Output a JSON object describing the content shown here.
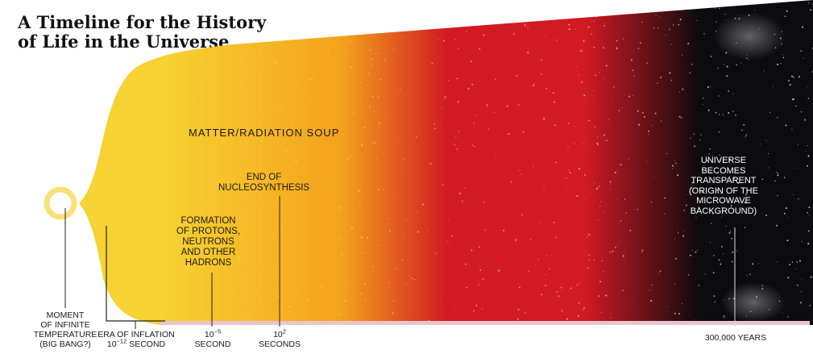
{
  "title": {
    "line1": "A Timeline for the History",
    "line2": "of Life in the Universe"
  },
  "colors": {
    "yellow": "#f6d232",
    "orange": "#f4a21c",
    "red": "#d11a22",
    "black": "#0c0b0e",
    "ring": "#f7e27a"
  },
  "labels": {
    "soup": "MATTER/RADIATION SOUP",
    "nucleo": [
      "END OF",
      "NUCLEOSYNTHESIS"
    ],
    "hadrons": [
      "FORMATION",
      "OF PROTONS,",
      "NEUTRONS",
      "AND OTHER",
      "HADRONS"
    ],
    "transparent": [
      "UNIVERSE",
      "BECOMES",
      "TRANSPARENT",
      "(ORIGIN OF THE",
      "MICROWAVE",
      "BACKGROUND)"
    ],
    "bigbang": [
      "MOMENT",
      "OF INFINITE",
      "TEMPERATURE",
      "(BIG BANG?)"
    ],
    "inflation": {
      "line1": "ERA OF INFLATION",
      "line2_base": "10",
      "line2_exp": "−12",
      "line2_suffix": " SECOND"
    },
    "t_1e5": {
      "base": "10",
      "exp": "−5",
      "unit": "SECOND"
    },
    "t_1e2": {
      "base": "10",
      "exp": "2",
      "unit": "SECONDS"
    },
    "t_300k": "300,000 YEARS"
  }
}
